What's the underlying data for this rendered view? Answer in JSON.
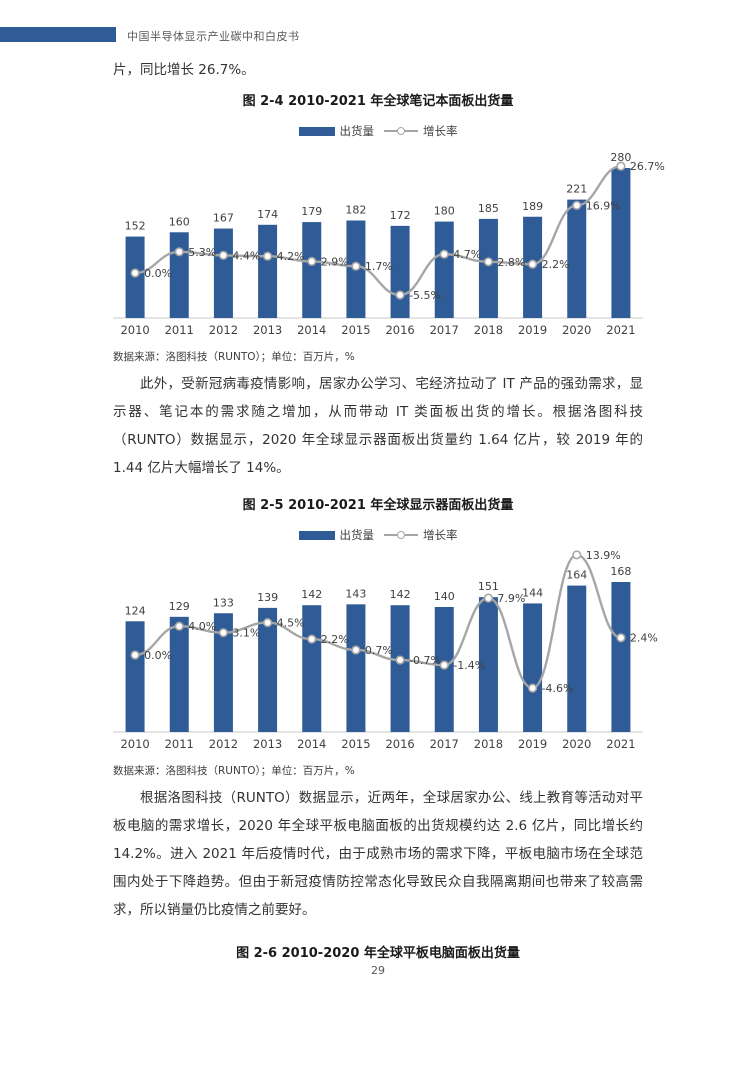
{
  "header": {
    "title": "中国半导体显示产业碳中和白皮书"
  },
  "intro_line": "片，同比增长 26.7%。",
  "paragraphs": {
    "p1": "此外，受新冠病毒疫情影响，居家办公学习、宅经济拉动了 IT 产品的强劲需求，显示器、笔记本的需求随之增加，从而带动 IT 类面板出货的增长。根据洛图科技（RUNTO）数据显示，2020 年全球显示器面板出货量约 1.64 亿片，较 2019 年的 1.44 亿片大幅增长了 14%。",
    "p2": "根据洛图科技（RUNTO）数据显示，近两年，全球居家办公、线上教育等活动对平板电脑的需求增长，2020 年全球平板电脑面板的出货规模约达 2.6 亿片，同比增长约 14.2%。进入 2021 年后疫情时代，由于成熟市场的需求下降，平板电脑市场在全球范围内处于下降趋势。但由于新冠疫情防控常态化导致民众自我隔离期间也带来了较高需求，所以销量仍比疫情之前要好。"
  },
  "figure6_caption": "图 2-6 2010-2020 年全球平板电脑面板出货量",
  "page_number": "29",
  "chart_data": [
    {
      "type": "bar",
      "title": "图 2-4 2010-2021 年全球笔记本面板出货量",
      "categories": [
        "2010",
        "2011",
        "2012",
        "2013",
        "2014",
        "2015",
        "2016",
        "2017",
        "2018",
        "2019",
        "2020",
        "2021"
      ],
      "series": [
        {
          "name": "出货量",
          "type": "bar",
          "values": [
            152,
            160,
            167,
            174,
            179,
            182,
            172,
            180,
            185,
            189,
            221,
            280
          ]
        },
        {
          "name": "增长率",
          "type": "line",
          "unit": "%",
          "values": [
            0.0,
            5.3,
            4.4,
            4.2,
            2.9,
            1.7,
            -5.5,
            4.7,
            2.8,
            2.2,
            16.9,
            26.7
          ],
          "labels": [
            "0.0%",
            "5.3%",
            "4.4%",
            "4.2%",
            "2.9%",
            "1.7%",
            "-5.5%",
            "4.7%",
            "2.8%",
            "2.2%",
            "16.9%",
            "26.7%"
          ]
        }
      ],
      "ylabel": "百万片",
      "source": "数据来源：洛图科技（RUNTO）；单位：百万片，%",
      "bar_color": "#2F5B96",
      "line_color": "#A6A6A6",
      "label_color": "#404040",
      "legend_position": "top",
      "grid": false
    },
    {
      "type": "bar",
      "title": "图 2-5 2010-2021 年全球显示器面板出货量",
      "categories": [
        "2010",
        "2011",
        "2012",
        "2013",
        "2014",
        "2015",
        "2016",
        "2017",
        "2018",
        "2019",
        "2020",
        "2021"
      ],
      "series": [
        {
          "name": "出货量",
          "type": "bar",
          "values": [
            124,
            129,
            133,
            139,
            142,
            143,
            142,
            140,
            151,
            144,
            164,
            168
          ]
        },
        {
          "name": "增长率",
          "type": "line",
          "unit": "%",
          "values": [
            0.0,
            4.0,
            3.1,
            4.5,
            2.2,
            0.7,
            -0.7,
            -1.4,
            7.9,
            -4.6,
            13.9,
            2.4
          ],
          "labels": [
            "0.0%",
            "4.0%",
            "3.1%",
            "4.5%",
            "2.2%",
            "0.7%",
            "-0.7%",
            "-1.4%",
            "7.9%",
            "-4.6%",
            "13.9%",
            "2.4%"
          ]
        }
      ],
      "ylabel": "百万片",
      "source": "数据来源：洛图科技（RUNTO）；单位：百万片，%",
      "bar_color": "#2F5B96",
      "line_color": "#A6A6A6",
      "label_color": "#404040",
      "legend_position": "top",
      "grid": false
    }
  ]
}
